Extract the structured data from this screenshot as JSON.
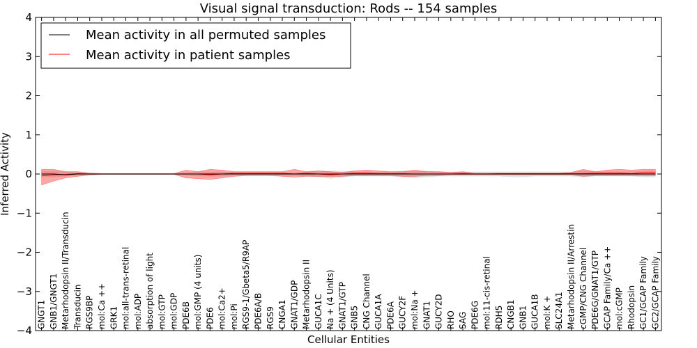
{
  "chart_data": {
    "type": "line",
    "title": "Visual signal transduction: Rods -- 154 samples",
    "xlabel": "Cellular Entities",
    "ylabel": "Inferred Activity",
    "ylim": [
      -4,
      4
    ],
    "yticks": [
      "−4",
      "−3",
      "−2",
      "−1",
      "0",
      "1",
      "2",
      "3",
      "4"
    ],
    "yticks_values": [
      -4,
      -3,
      -2,
      -1,
      0,
      1,
      2,
      3,
      4
    ],
    "grid": false,
    "legend_position": "top-left",
    "categories": [
      "GNGT1",
      "GNB1/GNGT1",
      "Metarhodopsin II/Transducin",
      "Transducin",
      "RGS9BP",
      "mol:Ca ++",
      "GRK1",
      "mol:all-trans-retinal",
      "mol:ADP",
      "absorption of light",
      "mol:GTP",
      "mol:GDP",
      "PDE6B",
      "mol:GMP (4 units)",
      "PDE6",
      "mol:Ca2+",
      "mol:Pi",
      "RGS9-1/Gbeta5/R9AP",
      "PDE6A/B",
      "RGS9",
      "CNGA1",
      "GNAT1/GDP",
      "Metarhodopsin II",
      "GUCA1C",
      "Na + (4 Units)",
      "GNAT1/GTP",
      "GNB5",
      "CNG Channel",
      "GUCA1A",
      "PDE6A",
      "GUCY2F",
      "mol:Na +",
      "GNAT1",
      "GUCY2D",
      "RHO",
      "SAG",
      "PDE6G",
      "mol:11-cis-retinal",
      "RDH5",
      "CNGB1",
      "GNB1",
      "GUCA1B",
      "mol:K +",
      "SLC24A1",
      "Metarhodopsin II/Arrestin",
      "cGMP/CNG Channel",
      "PDE6G/GNAT1/GTP",
      "GCAP Family/Ca ++",
      "mol:cGMP",
      "Rhodopsin",
      "GC1/GCAP Family",
      "GC2/GCAP Family"
    ],
    "series": [
      {
        "name": "Mean activity in all permuted samples",
        "color": "#000000",
        "values": [
          0.0,
          0.0,
          -0.02,
          0.0,
          0.0,
          0.0,
          0.0,
          0.0,
          0.0,
          0.0,
          0.0,
          0.0,
          0.0,
          0.0,
          0.0,
          0.0,
          0.0,
          0.0,
          0.0,
          0.0,
          0.0,
          0.0,
          0.0,
          0.0,
          0.0,
          0.0,
          0.0,
          0.0,
          0.0,
          0.0,
          0.0,
          0.0,
          0.0,
          0.0,
          0.0,
          0.0,
          0.0,
          0.0,
          0.0,
          0.0,
          0.0,
          0.0,
          0.0,
          0.0,
          0.0,
          0.0,
          0.0,
          0.0,
          0.0,
          0.0,
          0.0,
          0.0
        ],
        "band_low": [
          -0.08,
          -0.08,
          -0.06,
          -0.04,
          -0.04,
          -0.02,
          -0.02,
          -0.02,
          -0.02,
          -0.02,
          -0.02,
          -0.02,
          -0.04,
          -0.06,
          -0.06,
          -0.06,
          -0.04,
          -0.04,
          -0.04,
          -0.04,
          -0.04,
          -0.04,
          -0.06,
          -0.08,
          -0.12,
          -0.08,
          -0.06,
          -0.06,
          -0.06,
          -0.06,
          -0.08,
          -0.1,
          -0.08,
          -0.06,
          -0.06,
          -0.06,
          -0.06,
          -0.06,
          -0.06,
          -0.08,
          -0.08,
          -0.06,
          -0.06,
          -0.06,
          -0.06,
          -0.08,
          -0.06,
          -0.06,
          -0.06,
          -0.06,
          -0.08,
          -0.08
        ],
        "band_high": [
          0.08,
          0.08,
          0.06,
          0.04,
          0.04,
          0.02,
          0.02,
          0.02,
          0.02,
          0.02,
          0.02,
          0.02,
          0.04,
          0.06,
          0.06,
          0.06,
          0.04,
          0.04,
          0.04,
          0.04,
          0.04,
          0.04,
          0.06,
          0.08,
          0.08,
          0.08,
          0.06,
          0.06,
          0.06,
          0.06,
          0.08,
          0.08,
          0.08,
          0.06,
          0.06,
          0.06,
          0.06,
          0.06,
          0.06,
          0.06,
          0.06,
          0.06,
          0.06,
          0.06,
          0.06,
          0.08,
          0.06,
          0.06,
          0.06,
          0.06,
          0.08,
          0.08
        ]
      },
      {
        "name": "Mean activity in patient samples",
        "color": "#ff0000",
        "values": [
          -0.05,
          -0.02,
          -0.01,
          0.01,
          0.0,
          0.0,
          0.0,
          0.0,
          0.0,
          0.0,
          0.0,
          0.0,
          0.0,
          0.0,
          -0.02,
          0.0,
          0.02,
          0.02,
          0.02,
          0.02,
          0.02,
          0.0,
          0.02,
          0.0,
          -0.02,
          0.0,
          0.02,
          0.02,
          0.01,
          0.01,
          0.01,
          0.0,
          0.0,
          0.0,
          0.0,
          0.01,
          0.0,
          0.0,
          0.01,
          0.01,
          0.01,
          0.01,
          0.01,
          0.01,
          0.01,
          0.01,
          0.02,
          0.02,
          0.02,
          0.01,
          0.03,
          0.03
        ],
        "band_low": [
          -0.28,
          -0.18,
          -0.1,
          -0.06,
          -0.02,
          -0.01,
          -0.01,
          -0.01,
          -0.01,
          -0.01,
          -0.01,
          -0.01,
          -0.1,
          -0.12,
          -0.14,
          -0.1,
          -0.06,
          -0.04,
          -0.04,
          -0.04,
          -0.06,
          -0.08,
          -0.06,
          -0.06,
          -0.06,
          -0.06,
          -0.04,
          -0.04,
          -0.04,
          -0.04,
          -0.06,
          -0.06,
          -0.04,
          -0.04,
          -0.02,
          -0.02,
          -0.02,
          -0.02,
          -0.02,
          -0.02,
          -0.02,
          -0.02,
          -0.02,
          -0.02,
          -0.02,
          -0.06,
          -0.04,
          -0.04,
          -0.04,
          -0.04,
          -0.04,
          -0.04
        ],
        "band_high": [
          0.12,
          0.12,
          0.06,
          0.06,
          0.02,
          0.01,
          0.01,
          0.01,
          0.01,
          0.01,
          0.01,
          0.01,
          0.1,
          0.06,
          0.12,
          0.1,
          0.06,
          0.06,
          0.06,
          0.06,
          0.06,
          0.12,
          0.06,
          0.08,
          0.06,
          0.04,
          0.08,
          0.1,
          0.08,
          0.06,
          0.06,
          0.1,
          0.06,
          0.06,
          0.04,
          0.06,
          0.02,
          0.02,
          0.02,
          0.02,
          0.02,
          0.02,
          0.02,
          0.02,
          0.04,
          0.12,
          0.06,
          0.1,
          0.12,
          0.1,
          0.12,
          0.12
        ]
      }
    ]
  }
}
